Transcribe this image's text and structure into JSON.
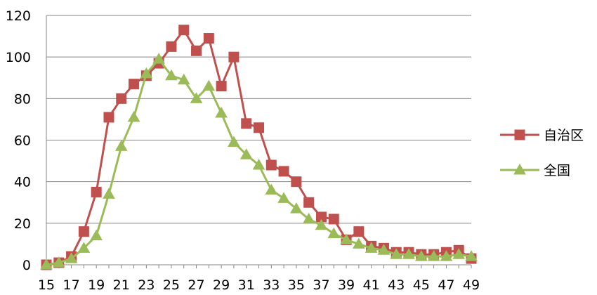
{
  "chart_data": {
    "type": "line",
    "title": "",
    "xlabel": "",
    "ylabel": "",
    "x": [
      15,
      16,
      17,
      18,
      19,
      20,
      21,
      22,
      23,
      24,
      25,
      26,
      27,
      28,
      29,
      30,
      31,
      32,
      33,
      34,
      35,
      36,
      37,
      38,
      39,
      40,
      41,
      42,
      43,
      44,
      45,
      46,
      47,
      48,
      49
    ],
    "x_tick_labels": [
      "15",
      "17",
      "19",
      "21",
      "23",
      "25",
      "27",
      "29",
      "31",
      "33",
      "35",
      "37",
      "39",
      "41",
      "43",
      "45",
      "47",
      "49"
    ],
    "ylim": [
      0,
      120
    ],
    "y_ticks": [
      0,
      20,
      40,
      60,
      80,
      100,
      120
    ],
    "grid": true,
    "legend": "right",
    "series": [
      {
        "name": "自治区",
        "color": "#C0504D",
        "marker": "square",
        "values": [
          0,
          1,
          4,
          16,
          35,
          71,
          80,
          87,
          91,
          97,
          105,
          113,
          103,
          109,
          86,
          100,
          68,
          66,
          48,
          45,
          40,
          30,
          23,
          22,
          12,
          16,
          9,
          8,
          6,
          6,
          5,
          5,
          6,
          7,
          3
        ]
      },
      {
        "name": "全国",
        "color": "#9BBB59",
        "marker": "triangle",
        "values": [
          0,
          1,
          3,
          8,
          14,
          34,
          57,
          71,
          92,
          99,
          91,
          89,
          80,
          86,
          73,
          59,
          53,
          48,
          36,
          32,
          27,
          22,
          19,
          15,
          12,
          10,
          8,
          7,
          5,
          5,
          4,
          4,
          4,
          5,
          4
        ]
      }
    ]
  }
}
